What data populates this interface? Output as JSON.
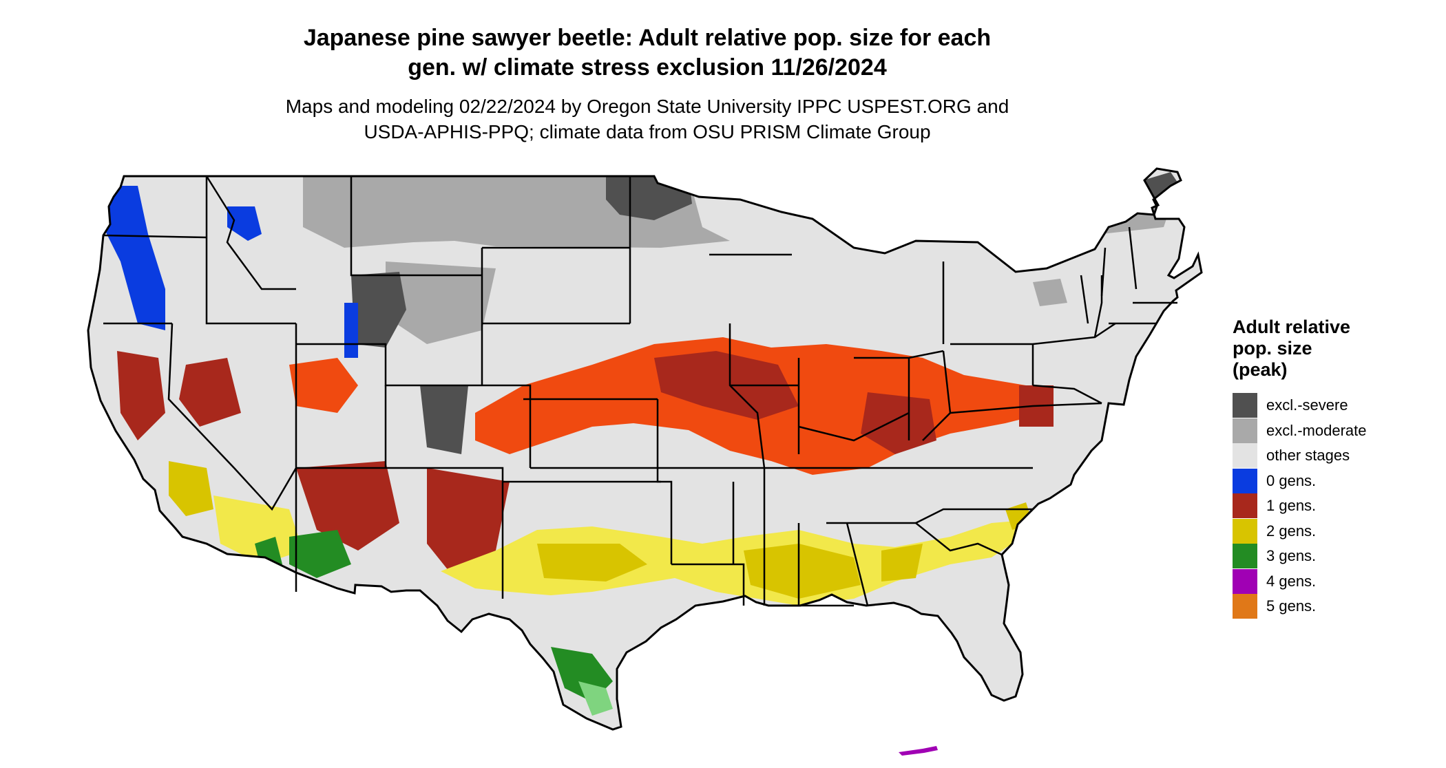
{
  "title_line1": "Japanese pine sawyer beetle: Adult relative pop. size for each",
  "title_line2": "gen. w/ climate stress exclusion 11/26/2024",
  "subtitle_line1": "Maps and modeling 02/22/2024 by Oregon State University IPPC USPEST.ORG and",
  "subtitle_line2": "USDA-APHIS-PPQ; climate data from OSU PRISM Climate Group",
  "legend": {
    "title_line1": "Adult relative",
    "title_line2": "pop. size",
    "title_line3": "(peak)",
    "items": [
      {
        "label": "excl.-severe",
        "color": "#505050"
      },
      {
        "label": "excl.-moderate",
        "color": "#a9a9a9"
      },
      {
        "label": "other stages",
        "color": "#e3e3e3"
      },
      {
        "label": "0 gens.",
        "color": "#0a3ce0"
      },
      {
        "label": "1 gens.",
        "color": "#a8281c"
      },
      {
        "label": "2 gens.",
        "color": "#d8c400"
      },
      {
        "label": "3 gens.",
        "color": "#238c23"
      },
      {
        "label": "4 gens.",
        "color": "#a000b4"
      },
      {
        "label": "5 gens.",
        "color": "#e07818"
      }
    ]
  },
  "map_colors": {
    "orange_band": "#f04a10",
    "light_green": "#7fd47f",
    "light_yellow": "#f2e84a",
    "light_blue": "#40a8f0"
  }
}
